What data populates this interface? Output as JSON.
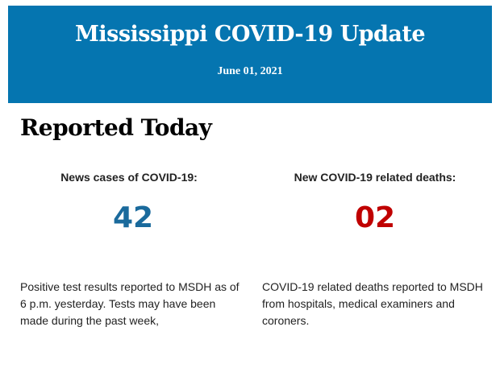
{
  "header": {
    "title": "Mississippi COVID-19 Update",
    "date": "June 01, 2021",
    "background": "#0575b0"
  },
  "section": {
    "heading": "Reported Today"
  },
  "stats": [
    {
      "label": "News cases of COVID-19:",
      "value": "42",
      "color": "#1a6a9c",
      "description": "Positive test results reported to MSDH as of 6 p.m. yesterday. Tests may have been made during the past week,"
    },
    {
      "label": "New COVID-19 related deaths:",
      "value": "02",
      "color": "#c00000",
      "description": "COVID-19 related deaths reported to MSDH from hospitals, medical examiners and coroners."
    }
  ]
}
